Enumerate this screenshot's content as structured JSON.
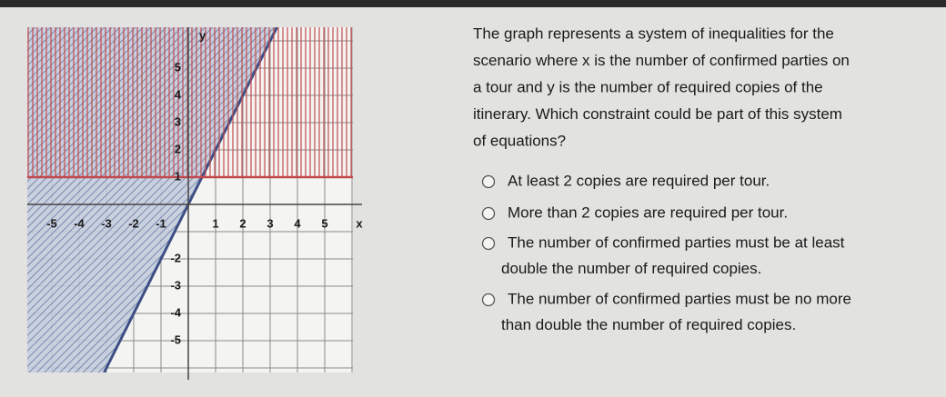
{
  "graph": {
    "x_axis_label": "x",
    "y_axis_label": "y",
    "x_ticks": [
      "-5",
      "-4",
      "-3",
      "-2",
      "-1",
      "1",
      "2",
      "3",
      "4",
      "5"
    ],
    "y_ticks": [
      "5",
      "4",
      "3",
      "2",
      "1",
      "-2",
      "-3",
      "-4",
      "-5"
    ]
  },
  "question": {
    "lines": [
      "The graph represents a system of inequalities for the",
      "scenario where x is the number of confirmed parties on",
      "a tour and y is the number of required copies of the",
      "itinerary. Which constraint could be part of this system",
      "of equations?"
    ]
  },
  "options": [
    {
      "lines": [
        "At least 2 copies are required per tour."
      ]
    },
    {
      "lines": [
        "More than 2 copies are required per tour."
      ]
    },
    {
      "lines": [
        "The number of confirmed parties must be at least",
        "double the number of required copies."
      ]
    },
    {
      "lines": [
        "The number of confirmed parties must be no more",
        "than double the number of required copies."
      ]
    }
  ]
}
